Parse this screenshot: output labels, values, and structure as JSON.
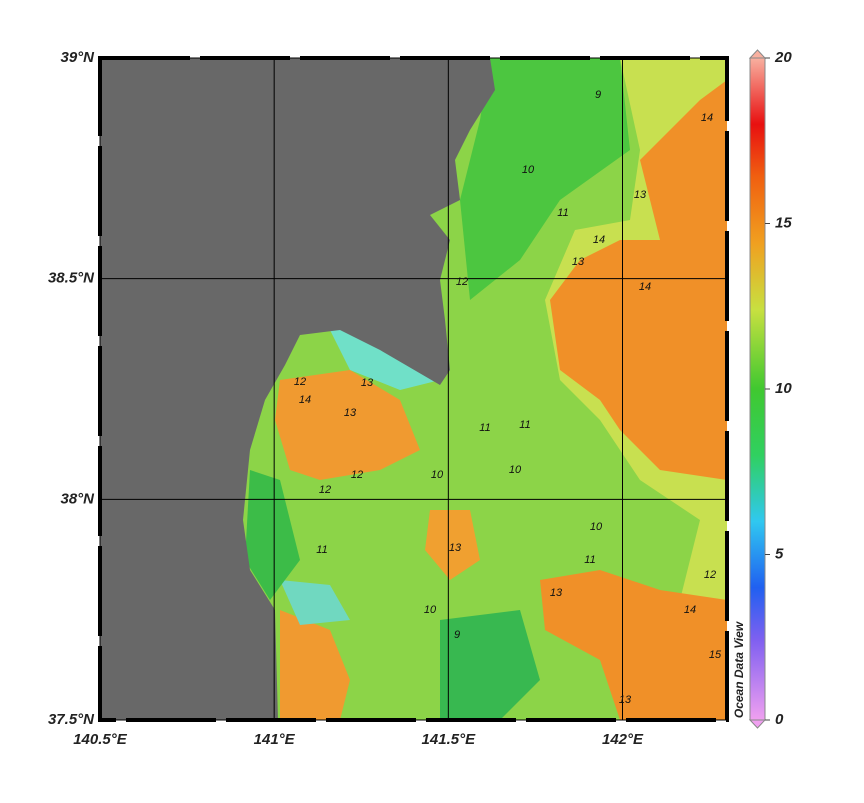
{
  "map": {
    "lonlim": [
      140.5,
      142.3
    ],
    "latlim": [
      37.5,
      39
    ],
    "lonticks": [
      {
        "value": 140.5,
        "label": "140.5°E"
      },
      {
        "value": 141,
        "label": "141°E"
      },
      {
        "value": 141.5,
        "label": "141.5°E"
      },
      {
        "value": 142,
        "label": "142°E"
      }
    ],
    "latticks": [
      {
        "value": 37.5,
        "label": "37.5°N"
      },
      {
        "value": 38,
        "label": "38°N"
      },
      {
        "value": 38.5,
        "label": "38.5°N"
      },
      {
        "value": 39,
        "label": "39°N"
      }
    ],
    "colorbar": {
      "range": [
        0,
        20
      ],
      "ticks": [
        0,
        5,
        10,
        15,
        20
      ]
    },
    "watermark": "Ocean Data View",
    "contour_labels": [
      12,
      14,
      9,
      10,
      11,
      13,
      14,
      13,
      14,
      14,
      12,
      13,
      13,
      11,
      10,
      11,
      10,
      12,
      13,
      11,
      10,
      14,
      13,
      12,
      11,
      15,
      13,
      12,
      10,
      9
    ]
  }
}
